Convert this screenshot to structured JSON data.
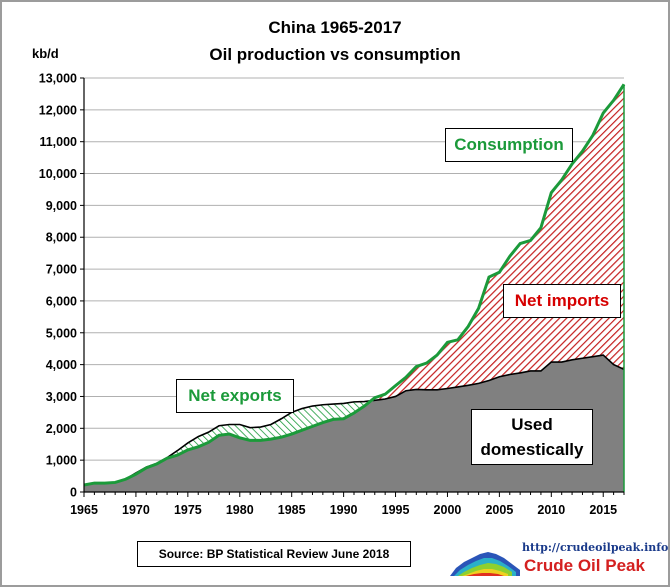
{
  "chart_data": {
    "type": "area",
    "title": "China  1965-2017",
    "subtitle": "Oil production vs consumption",
    "ylabel": "kb/d",
    "ylim": [
      0,
      13000
    ],
    "yticks": [
      0,
      1000,
      2000,
      3000,
      4000,
      5000,
      6000,
      7000,
      8000,
      9000,
      10000,
      11000,
      12000,
      13000
    ],
    "ytick_labels": [
      "0",
      "1,000",
      "2,000",
      "3,000",
      "4,000",
      "5,000",
      "6,000",
      "7,000",
      "8,000",
      "9,000",
      "10,000",
      "11,000",
      "12,000",
      "13,000"
    ],
    "xlim": [
      1965,
      2017
    ],
    "xticks": [
      1965,
      1970,
      1975,
      1980,
      1985,
      1990,
      1995,
      2000,
      2005,
      2010,
      2015
    ],
    "x": [
      1965,
      1966,
      1967,
      1968,
      1969,
      1970,
      1971,
      1972,
      1973,
      1974,
      1975,
      1976,
      1977,
      1978,
      1979,
      1980,
      1981,
      1982,
      1983,
      1984,
      1985,
      1986,
      1987,
      1988,
      1989,
      1990,
      1991,
      1992,
      1993,
      1994,
      1995,
      1996,
      1997,
      1998,
      1999,
      2000,
      2001,
      2002,
      2003,
      2004,
      2005,
      2006,
      2007,
      2008,
      2009,
      2010,
      2011,
      2012,
      2013,
      2014,
      2015,
      2016,
      2017
    ],
    "series": [
      {
        "name": "Consumption",
        "color": "#1b9a3a",
        "values": [
          220,
          280,
          280,
          300,
          400,
          560,
          760,
          880,
          1060,
          1160,
          1320,
          1420,
          1560,
          1780,
          1820,
          1700,
          1620,
          1620,
          1660,
          1720,
          1820,
          1940,
          2060,
          2180,
          2280,
          2300,
          2480,
          2700,
          2960,
          3070,
          3340,
          3600,
          3940,
          4050,
          4300,
          4700,
          4780,
          5200,
          5770,
          6750,
          6900,
          7400,
          7800,
          7900,
          8300,
          9400,
          9800,
          10300,
          10700,
          11200,
          11900,
          12300,
          12800
        ]
      },
      {
        "name": "Production",
        "values": [
          220,
          280,
          280,
          300,
          400,
          600,
          780,
          900,
          1080,
          1300,
          1540,
          1740,
          1880,
          2080,
          2120,
          2120,
          2020,
          2040,
          2120,
          2300,
          2500,
          2620,
          2700,
          2740,
          2760,
          2780,
          2830,
          2840,
          2880,
          2920,
          3000,
          3180,
          3220,
          3210,
          3210,
          3250,
          3300,
          3350,
          3410,
          3500,
          3620,
          3690,
          3740,
          3800,
          3800,
          4080,
          4080,
          4150,
          4200,
          4250,
          4300,
          4000,
          3850
        ]
      }
    ],
    "grid": true,
    "annotations": {
      "consumption": "Consumption",
      "net_exports": "Net exports",
      "net_imports": "Net imports",
      "used_line1": "Used",
      "used_line2": "domestically",
      "source": "Source: BP Statistical Review  June 2018"
    },
    "colors": {
      "consumption_line": "#1b9a3a",
      "production_line": "#000000",
      "used_fill": "#808080",
      "import_hatch": "#c41e1e",
      "export_hatch": "#1b9a3a",
      "net_imports_text": "#d60000"
    }
  },
  "logo": {
    "url": "http://crudeoilpeak.info",
    "name": "Crude Oil Peak"
  }
}
